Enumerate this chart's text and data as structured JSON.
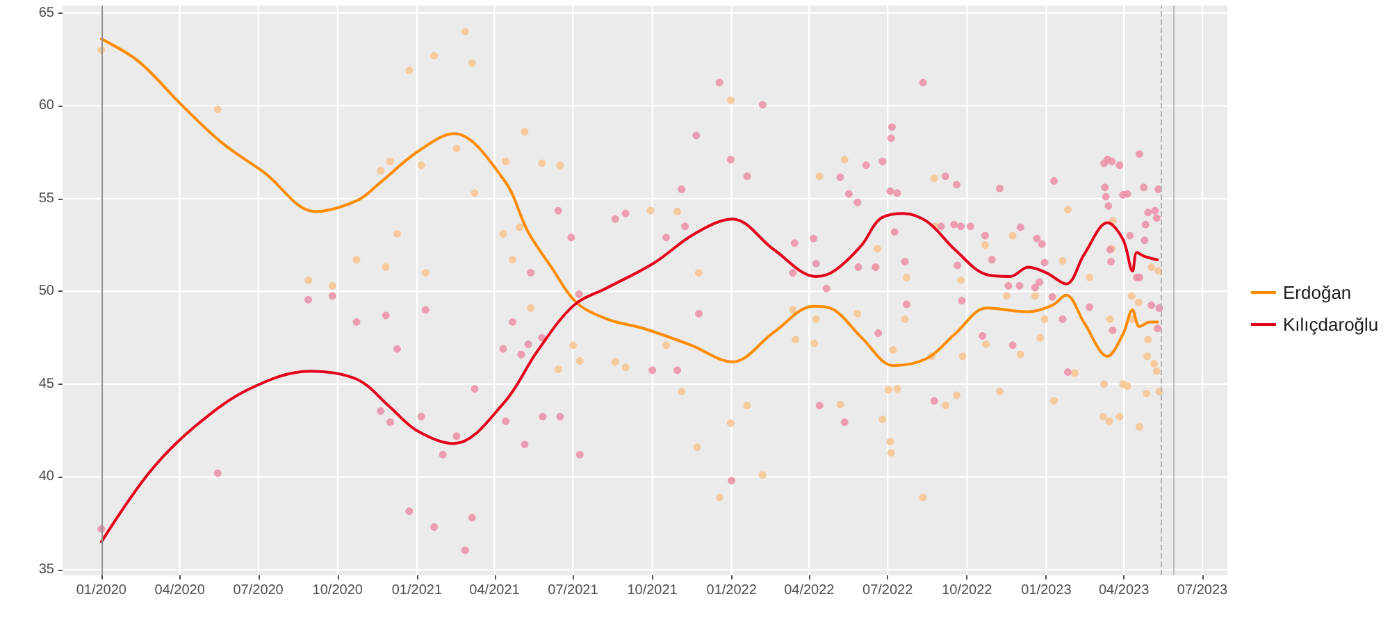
{
  "chart_data": {
    "type": "line",
    "legend": "right",
    "grid": true,
    "line_style": "solid",
    "xlim": [
      "2019-11-17",
      "2023-07-30"
    ],
    "ylim": [
      34.7,
      65.4
    ],
    "xticks": [
      {
        "value": "2020-01",
        "label": "01/2020"
      },
      {
        "value": "2020-04",
        "label": "04/2020"
      },
      {
        "value": "2020-07",
        "label": "07/2020"
      },
      {
        "value": "2020-10",
        "label": "10/2020"
      },
      {
        "value": "2021-01",
        "label": "01/2021"
      },
      {
        "value": "2021-04",
        "label": "04/2021"
      },
      {
        "value": "2021-07",
        "label": "07/2021"
      },
      {
        "value": "2021-10",
        "label": "10/2021"
      },
      {
        "value": "2022-01",
        "label": "01/2022"
      },
      {
        "value": "2022-04",
        "label": "04/2022"
      },
      {
        "value": "2022-07",
        "label": "07/2022"
      },
      {
        "value": "2022-10",
        "label": "10/2022"
      },
      {
        "value": "2023-01",
        "label": "01/2023"
      },
      {
        "value": "2023-04",
        "label": "04/2023"
      },
      {
        "value": "2023-07",
        "label": "07/2023"
      }
    ],
    "yticks": [
      35,
      40,
      45,
      50,
      55,
      60,
      65
    ],
    "ref_lines": [
      {
        "axis": "x",
        "value": "2020-01-01",
        "color": "#8c8c8c",
        "line_style": "solid"
      },
      {
        "axis": "x",
        "value": "2023-05-14",
        "color": "#b3b3b3",
        "line_style": "dashed"
      },
      {
        "axis": "x",
        "value": "2023-05-28",
        "color": "#bdbdbd",
        "line_style": "solid"
      }
    ],
    "series": [
      {
        "type": "scatter",
        "marker": "circle",
        "color": "#f9c490",
        "x": [
          "2020-01-01",
          "2020-05-15",
          "2020-08-28",
          "2020-09-25",
          "2020-10-23",
          "2020-11-20",
          "2020-12-01",
          "2020-11-26",
          "2020-12-09",
          "2020-12-23",
          "2021-01-06",
          "2021-01-11",
          "2021-01-21",
          "2021-02-16",
          "2021-02-26",
          "2021-03-06",
          "2021-03-09",
          "2021-04-14",
          "2021-05-06",
          "2021-04-11",
          "2021-04-30",
          "2021-04-22",
          "2021-05-13",
          "2021-05-26",
          "2021-06-16",
          "2021-07-01",
          "2021-07-09",
          "2021-06-14",
          "2021-08-19",
          "2021-08-31",
          "2021-09-29",
          "2021-10-17",
          "2021-10-30",
          "2021-11-04",
          "2021-11-24",
          "2021-11-22",
          "2021-12-18",
          "2021-12-31",
          "2021-12-31",
          "2022-01-19",
          "2022-02-06",
          "2022-03-13",
          "2022-03-16",
          "2022-04-07",
          "2022-04-09",
          "2022-04-13",
          "2022-05-07",
          "2022-05-12",
          "2022-05-27",
          "2022-06-17",
          "2022-06-19",
          "2022-06-25",
          "2022-07-02",
          "2022-07-04",
          "2022-07-05",
          "2022-07-12",
          "2022-07-07",
          "2022-07-21",
          "2022-07-23",
          "2022-08-11",
          "2022-08-24",
          "2022-08-25",
          "2022-08-21",
          "2022-09-06",
          "2022-09-19",
          "2022-09-24",
          "2022-09-26",
          "2022-10-22",
          "2022-10-23",
          "2022-11-08",
          "2022-11-16",
          "2022-11-23",
          "2022-12-02",
          "2022-12-19",
          "2022-12-25",
          "2022-12-30",
          "2023-01-10",
          "2023-01-20",
          "2023-01-26",
          "2023-02-03",
          "2023-02-20",
          "2023-03-09",
          "2023-03-08",
          "2023-03-15",
          "2023-03-27",
          "2023-03-16",
          "2023-03-18",
          "2023-03-19",
          "2023-03-31",
          "2023-04-05",
          "2023-04-19",
          "2023-04-10",
          "2023-04-11",
          "2023-04-18",
          "2023-04-28",
          "2023-04-29",
          "2023-05-06",
          "2023-05-09",
          "2023-05-12",
          "2023-05-03",
          "2023-05-11",
          "2023-04-27"
        ],
        "values": [
          63.0,
          59.8,
          50.6,
          50.3,
          51.7,
          56.5,
          57.0,
          51.3,
          53.1,
          61.9,
          56.8,
          51.0,
          62.7,
          57.7,
          64.0,
          62.3,
          55.3,
          57.0,
          58.6,
          53.1,
          53.45,
          51.7,
          49.1,
          56.9,
          56.8,
          47.1,
          46.25,
          45.8,
          46.2,
          45.9,
          54.35,
          47.1,
          54.3,
          44.6,
          51.0,
          41.6,
          38.9,
          60.3,
          42.9,
          43.85,
          40.1,
          49.0,
          47.4,
          47.2,
          48.5,
          56.2,
          43.9,
          57.1,
          48.8,
          51.3,
          52.3,
          43.1,
          44.7,
          41.9,
          41.3,
          44.75,
          46.85,
          48.5,
          50.75,
          38.9,
          56.1,
          53.5,
          46.5,
          43.85,
          44.4,
          50.6,
          46.5,
          52.5,
          47.15,
          44.6,
          49.75,
          53.0,
          46.6,
          49.75,
          47.5,
          48.5,
          44.1,
          51.65,
          54.4,
          45.6,
          50.75,
          45.0,
          43.25,
          43.0,
          43.25,
          48.5,
          52.3,
          53.8,
          45.0,
          44.9,
          42.7,
          49.75,
          48.5,
          49.4,
          46.5,
          47.4,
          46.1,
          45.7,
          44.6,
          51.3,
          51.1,
          44.5
        ]
      },
      {
        "type": "scatter",
        "marker": "circle",
        "color": "#ec8fa8",
        "x": [
          "2020-01-01",
          "2020-05-15",
          "2020-08-28",
          "2020-09-25",
          "2020-10-23",
          "2020-11-26",
          "2020-12-09",
          "2020-11-20",
          "2020-12-01",
          "2020-12-23",
          "2021-01-06",
          "2021-01-11",
          "2021-01-21",
          "2021-01-31",
          "2021-02-16",
          "2021-02-26",
          "2021-03-06",
          "2021-03-09",
          "2021-04-11",
          "2021-04-14",
          "2021-04-22",
          "2021-05-02",
          "2021-05-10",
          "2021-05-06",
          "2021-05-13",
          "2021-05-26",
          "2021-05-27",
          "2021-06-14",
          "2021-06-16",
          "2021-06-29",
          "2021-07-08",
          "2021-07-09",
          "2021-08-19",
          "2021-08-31",
          "2021-10-01",
          "2021-10-17",
          "2021-10-30",
          "2021-11-04",
          "2021-11-08",
          "2021-11-21",
          "2021-11-24",
          "2021-12-18",
          "2021-12-31",
          "2022-01-01",
          "2022-01-19",
          "2022-02-06",
          "2022-03-15",
          "2022-03-13",
          "2022-04-06",
          "2022-04-09",
          "2022-04-21",
          "2022-04-13",
          "2022-05-07",
          "2022-05-17",
          "2022-05-12",
          "2022-05-27",
          "2022-06-06",
          "2022-05-28",
          "2022-06-17",
          "2022-06-20",
          "2022-06-25",
          "2022-07-04",
          "2022-07-05",
          "2022-07-06",
          "2022-07-12",
          "2022-07-09",
          "2022-07-21",
          "2022-07-23",
          "2022-08-11",
          "2022-08-24",
          "2022-09-01",
          "2022-09-06",
          "2022-09-19",
          "2022-09-16",
          "2022-09-24",
          "2022-10-05",
          "2022-09-20",
          "2022-09-25",
          "2022-10-19",
          "2022-10-22",
          "2022-10-30",
          "2022-11-08",
          "2022-11-18",
          "2022-12-01",
          "2022-11-23",
          "2022-12-02",
          "2022-12-21",
          "2022-12-27",
          "2022-12-19",
          "2022-12-24",
          "2022-12-30",
          "2023-01-08",
          "2023-01-10",
          "2023-01-20",
          "2023-01-26",
          "2023-02-20",
          "2023-03-09",
          "2023-03-13",
          "2023-03-18",
          "2023-03-27",
          "2023-03-10",
          "2023-03-11",
          "2023-03-14",
          "2023-03-16",
          "2023-03-17",
          "2023-03-19",
          "2023-03-31",
          "2023-04-05",
          "2023-04-08",
          "2023-04-19",
          "2023-04-24",
          "2023-04-26",
          "2023-04-29",
          "2023-05-07",
          "2023-05-09",
          "2023-05-11",
          "2023-04-16",
          "2023-04-19",
          "2023-04-25",
          "2023-05-12",
          "2023-05-10",
          "2023-05-03"
        ],
        "values": [
          37.2,
          40.2,
          49.55,
          49.75,
          48.35,
          48.7,
          46.9,
          43.55,
          42.95,
          38.15,
          43.25,
          49.0,
          37.3,
          41.2,
          42.2,
          36.05,
          37.8,
          44.75,
          46.9,
          43.0,
          48.35,
          46.6,
          47.15,
          41.75,
          51.0,
          47.5,
          43.25,
          54.35,
          43.25,
          52.9,
          49.85,
          41.2,
          53.9,
          54.2,
          45.75,
          52.9,
          45.75,
          55.5,
          53.5,
          58.4,
          48.8,
          61.25,
          57.1,
          39.8,
          56.2,
          60.05,
          52.6,
          51.0,
          52.85,
          51.5,
          50.15,
          43.85,
          56.15,
          55.25,
          42.95,
          54.8,
          56.8,
          51.3,
          51.3,
          47.75,
          57.0,
          55.4,
          58.25,
          58.85,
          55.3,
          53.2,
          51.6,
          49.3,
          61.25,
          44.1,
          53.5,
          56.2,
          55.75,
          53.6,
          53.5,
          53.5,
          51.4,
          49.5,
          47.6,
          53.0,
          51.7,
          55.55,
          50.3,
          50.3,
          47.1,
          53.45,
          52.85,
          52.55,
          50.2,
          50.5,
          51.55,
          49.7,
          55.95,
          48.5,
          45.65,
          49.15,
          56.9,
          57.1,
          57.0,
          56.8,
          55.6,
          55.1,
          54.6,
          52.25,
          51.6,
          47.9,
          55.2,
          55.25,
          53.0,
          57.4,
          55.6,
          53.6,
          54.25,
          54.35,
          53.95,
          55.5,
          50.75,
          50.75,
          52.75,
          49.1,
          48.0,
          49.25
        ]
      },
      {
        "name": "Erdoğan",
        "color": "#ff8c00",
        "x": [
          "2020-01-01",
          "2020-02-13",
          "2020-04-02",
          "2020-05-20",
          "2020-07-08",
          "2020-09-05",
          "2020-10-24",
          "2020-11-18",
          "2021-01-01",
          "2021-02-13",
          "2021-04-12",
          "2021-05-10",
          "2021-06-06",
          "2021-07-05",
          "2021-08-10",
          "2021-09-21",
          "2021-11-15",
          "2022-01-02",
          "2022-02-19",
          "2022-04-06",
          "2022-04-30",
          "2022-06-01",
          "2022-07-08",
          "2022-08-16",
          "2022-09-17",
          "2022-10-24",
          "2022-12-11",
          "2023-01-08",
          "2023-01-24",
          "2023-02-14",
          "2023-03-13",
          "2023-03-31",
          "2023-04-11",
          "2023-04-19",
          "2023-05-01",
          "2023-05-10"
        ],
        "values": [
          63.6,
          62.4,
          60.1,
          58.0,
          56.4,
          54.3,
          54.9,
          55.8,
          57.5,
          58.5,
          56.0,
          53.2,
          51.3,
          49.4,
          48.5,
          48.0,
          47.1,
          46.2,
          47.8,
          49.2,
          49.0,
          47.5,
          46.0,
          46.4,
          47.7,
          49.1,
          48.9,
          49.25,
          49.8,
          48.3,
          46.5,
          47.7,
          49.0,
          48.1,
          48.35,
          48.35
        ]
      },
      {
        "name": "Kılıçdaroğlu",
        "color": "#e3001b",
        "x": [
          "2020-01-01",
          "2020-02-25",
          "2020-04-18",
          "2020-06-21",
          "2020-08-30",
          "2020-10-24",
          "2020-11-30",
          "2021-01-01",
          "2021-02-13",
          "2021-04-12",
          "2021-05-21",
          "2021-07-02",
          "2021-08-10",
          "2021-10-02",
          "2021-11-19",
          "2022-01-02",
          "2022-02-19",
          "2022-04-09",
          "2022-04-30",
          "2022-06-01",
          "2022-06-22",
          "2022-07-19",
          "2022-08-16",
          "2022-09-17",
          "2022-10-24",
          "2022-11-20",
          "2022-12-11",
          "2023-01-01",
          "2023-01-24",
          "2023-02-14",
          "2023-03-13",
          "2023-03-31",
          "2023-04-11",
          "2023-04-16",
          "2023-04-24",
          "2023-05-10"
        ],
        "values": [
          36.5,
          40.2,
          42.7,
          44.75,
          45.7,
          45.25,
          43.8,
          42.5,
          41.8,
          44.0,
          46.8,
          49.25,
          50.2,
          51.5,
          53.1,
          53.9,
          52.25,
          50.8,
          51.1,
          52.5,
          53.9,
          54.2,
          53.75,
          52.25,
          50.9,
          50.8,
          51.3,
          51.0,
          50.4,
          52.0,
          53.7,
          52.8,
          51.1,
          52.1,
          51.9,
          51.7
        ]
      }
    ]
  }
}
